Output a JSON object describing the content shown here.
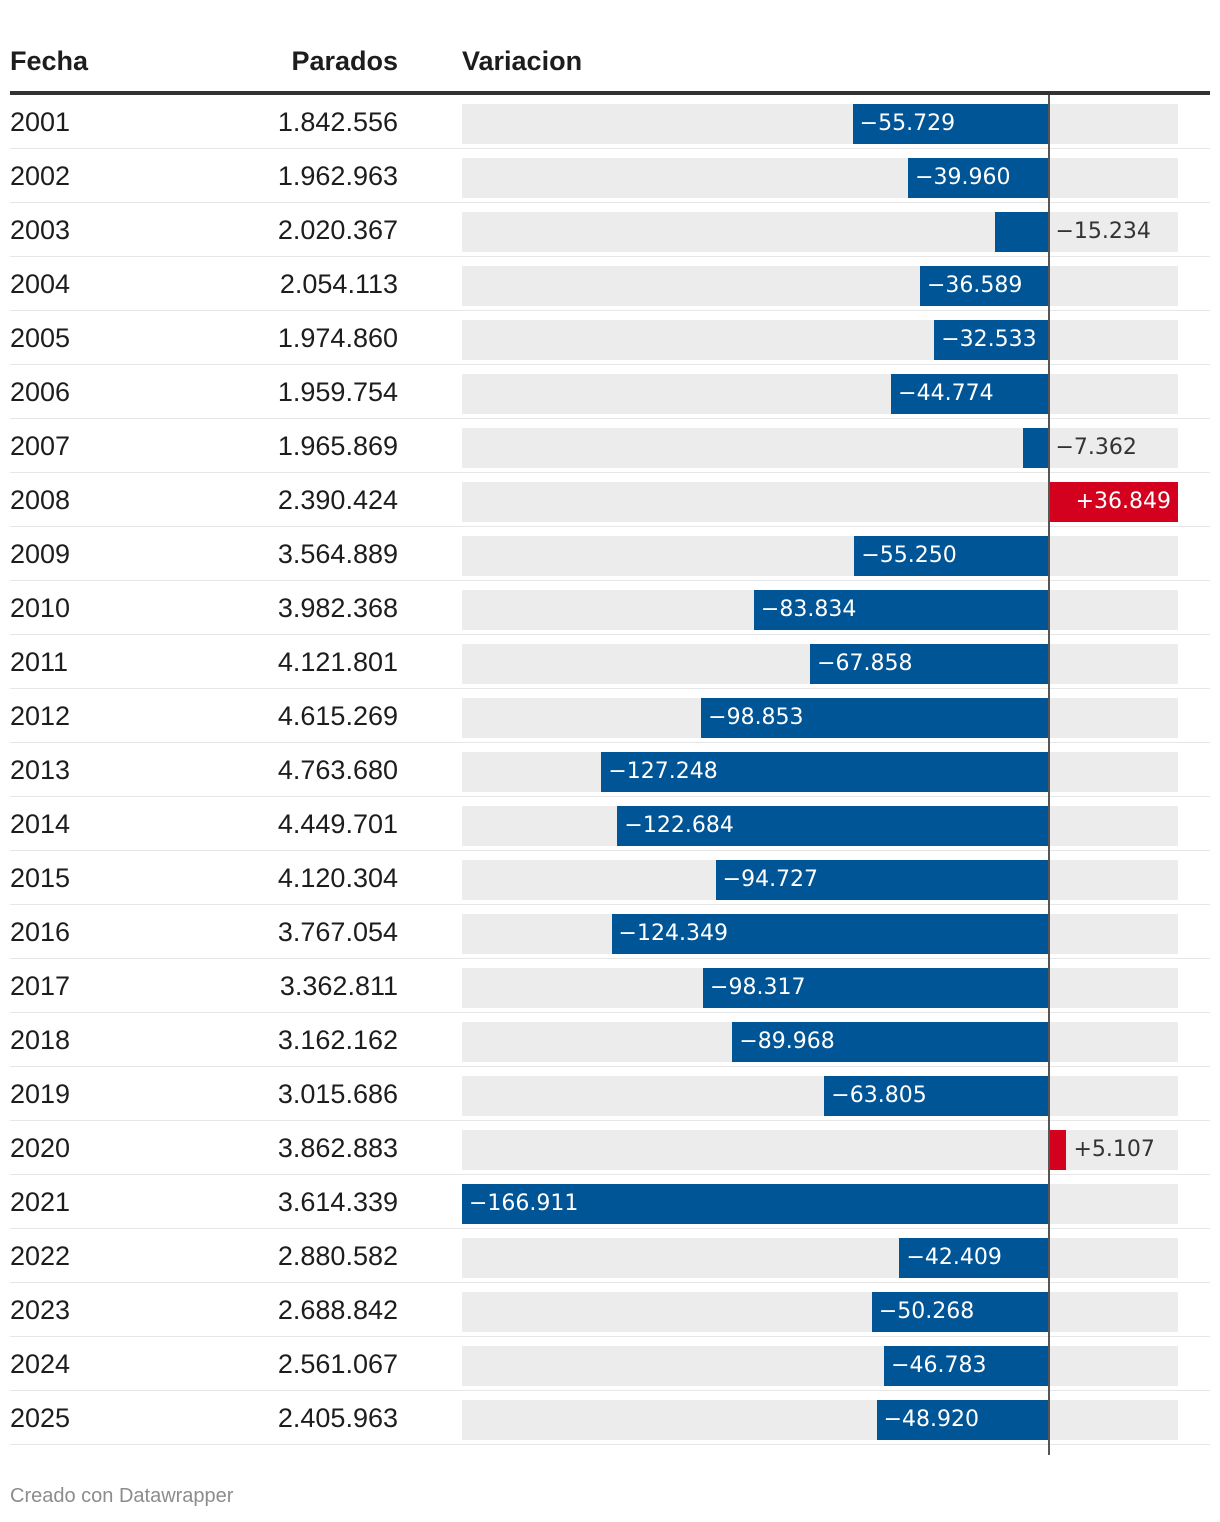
{
  "headers": {
    "fecha": "Fecha",
    "parados": "Parados",
    "variacion": "Variacion"
  },
  "footer": "Creado con Datawrapper",
  "colors": {
    "negative": "#005597",
    "positive": "#d3001e",
    "track": "#ececec"
  },
  "chart_data": {
    "type": "bar",
    "orientation": "horizontal",
    "title": "",
    "columns": [
      "Fecha",
      "Parados",
      "Variacion"
    ],
    "xlim": [
      -166911,
      36849
    ],
    "rows": [
      {
        "year": "2001",
        "parados": "1.842.556",
        "value": -55729,
        "label": "−55.729"
      },
      {
        "year": "2002",
        "parados": "1.962.963",
        "value": -39960,
        "label": "−39.960"
      },
      {
        "year": "2003",
        "parados": "2.020.367",
        "value": -15234,
        "label": "−15.234"
      },
      {
        "year": "2004",
        "parados": "2.054.113",
        "value": -36589,
        "label": "−36.589"
      },
      {
        "year": "2005",
        "parados": "1.974.860",
        "value": -32533,
        "label": "−32.533"
      },
      {
        "year": "2006",
        "parados": "1.959.754",
        "value": -44774,
        "label": "−44.774"
      },
      {
        "year": "2007",
        "parados": "1.965.869",
        "value": -7362,
        "label": "−7.362"
      },
      {
        "year": "2008",
        "parados": "2.390.424",
        "value": 36849,
        "label": "+36.849"
      },
      {
        "year": "2009",
        "parados": "3.564.889",
        "value": -55250,
        "label": "−55.250"
      },
      {
        "year": "2010",
        "parados": "3.982.368",
        "value": -83834,
        "label": "−83.834"
      },
      {
        "year": "2011",
        "parados": "4.121.801",
        "value": -67858,
        "label": "−67.858"
      },
      {
        "year": "2012",
        "parados": "4.615.269",
        "value": -98853,
        "label": "−98.853"
      },
      {
        "year": "2013",
        "parados": "4.763.680",
        "value": -127248,
        "label": "−127.248"
      },
      {
        "year": "2014",
        "parados": "4.449.701",
        "value": -122684,
        "label": "−122.684"
      },
      {
        "year": "2015",
        "parados": "4.120.304",
        "value": -94727,
        "label": "−94.727"
      },
      {
        "year": "2016",
        "parados": "3.767.054",
        "value": -124349,
        "label": "−124.349"
      },
      {
        "year": "2017",
        "parados": "3.362.811",
        "value": -98317,
        "label": "−98.317"
      },
      {
        "year": "2018",
        "parados": "3.162.162",
        "value": -89968,
        "label": "−89.968"
      },
      {
        "year": "2019",
        "parados": "3.015.686",
        "value": -63805,
        "label": "−63.805"
      },
      {
        "year": "2020",
        "parados": "3.862.883",
        "value": 5107,
        "label": "+5.107"
      },
      {
        "year": "2021",
        "parados": "3.614.339",
        "value": -166911,
        "label": "−166.911"
      },
      {
        "year": "2022",
        "parados": "2.880.582",
        "value": -42409,
        "label": "−42.409"
      },
      {
        "year": "2023",
        "parados": "2.688.842",
        "value": -50268,
        "label": "−50.268"
      },
      {
        "year": "2024",
        "parados": "2.561.067",
        "value": -46783,
        "label": "−46.783"
      },
      {
        "year": "2025",
        "parados": "2.405.963",
        "value": -48920,
        "label": "−48.920"
      }
    ]
  }
}
